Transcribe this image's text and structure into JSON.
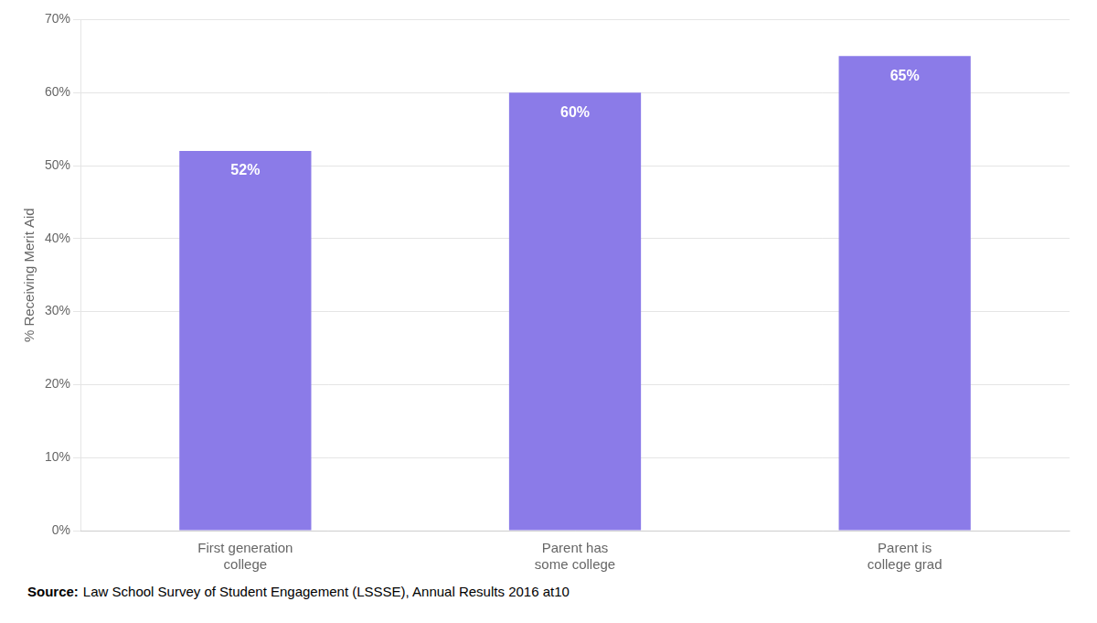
{
  "chart_data": {
    "type": "bar",
    "categories": [
      "First generation\ncollege",
      "Parent has\nsome college",
      "Parent is\ncollege grad"
    ],
    "values": [
      52,
      60,
      65
    ],
    "value_labels": [
      "52%",
      "60%",
      "65%"
    ],
    "data_labels": true,
    "color": "#8B7BE8",
    "ylabel": "% Receiving Merit Aid",
    "ylim": [
      0,
      70
    ],
    "yticks": [
      {
        "value": 0,
        "label": "0%"
      },
      {
        "value": 10,
        "label": "10%"
      },
      {
        "value": 20,
        "label": "20%"
      },
      {
        "value": 30,
        "label": "30%"
      },
      {
        "value": 40,
        "label": "40%"
      },
      {
        "value": 50,
        "label": "50%"
      },
      {
        "value": 60,
        "label": "60%"
      },
      {
        "value": 70,
        "label": "70%"
      }
    ],
    "grid": true,
    "annotations": [
      "Source:",
      "Law School Survey of Student Engagement (LSSSE), Annual Results 2016 at10"
    ]
  }
}
